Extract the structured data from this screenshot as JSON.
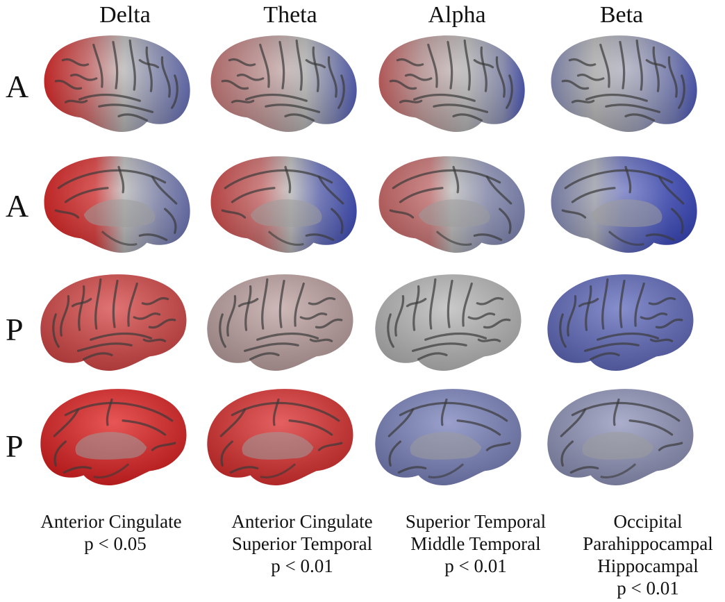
{
  "columns": [
    {
      "label": "Delta"
    },
    {
      "label": "Theta"
    },
    {
      "label": "Alpha"
    },
    {
      "label": "Beta"
    }
  ],
  "rows": [
    {
      "label": "A",
      "view": "lateral",
      "facing": "left"
    },
    {
      "label": "A",
      "view": "medial",
      "facing": "left"
    },
    {
      "label": "P",
      "view": "lateral",
      "facing": "right"
    },
    {
      "label": "P",
      "view": "medial",
      "facing": "right"
    }
  ],
  "colors": {
    "increase": "#e01e1e",
    "decrease": "#2f3fc0",
    "neutral": "#b8b8b8",
    "sulci": "#3a3a3a"
  },
  "captions": [
    {
      "lines": [
        "Anterior Cingulate",
        "p < 0.05"
      ]
    },
    {
      "lines": [
        "Anterior Cingulate",
        "Superior Temporal",
        "p < 0.01"
      ]
    },
    {
      "lines": [
        "Superior Temporal",
        "Middle Temporal",
        "p < 0.01"
      ]
    },
    {
      "lines": [
        "Occipital",
        "Parahippocampal",
        "Hippocampal",
        "p < 0.01"
      ]
    }
  ]
}
